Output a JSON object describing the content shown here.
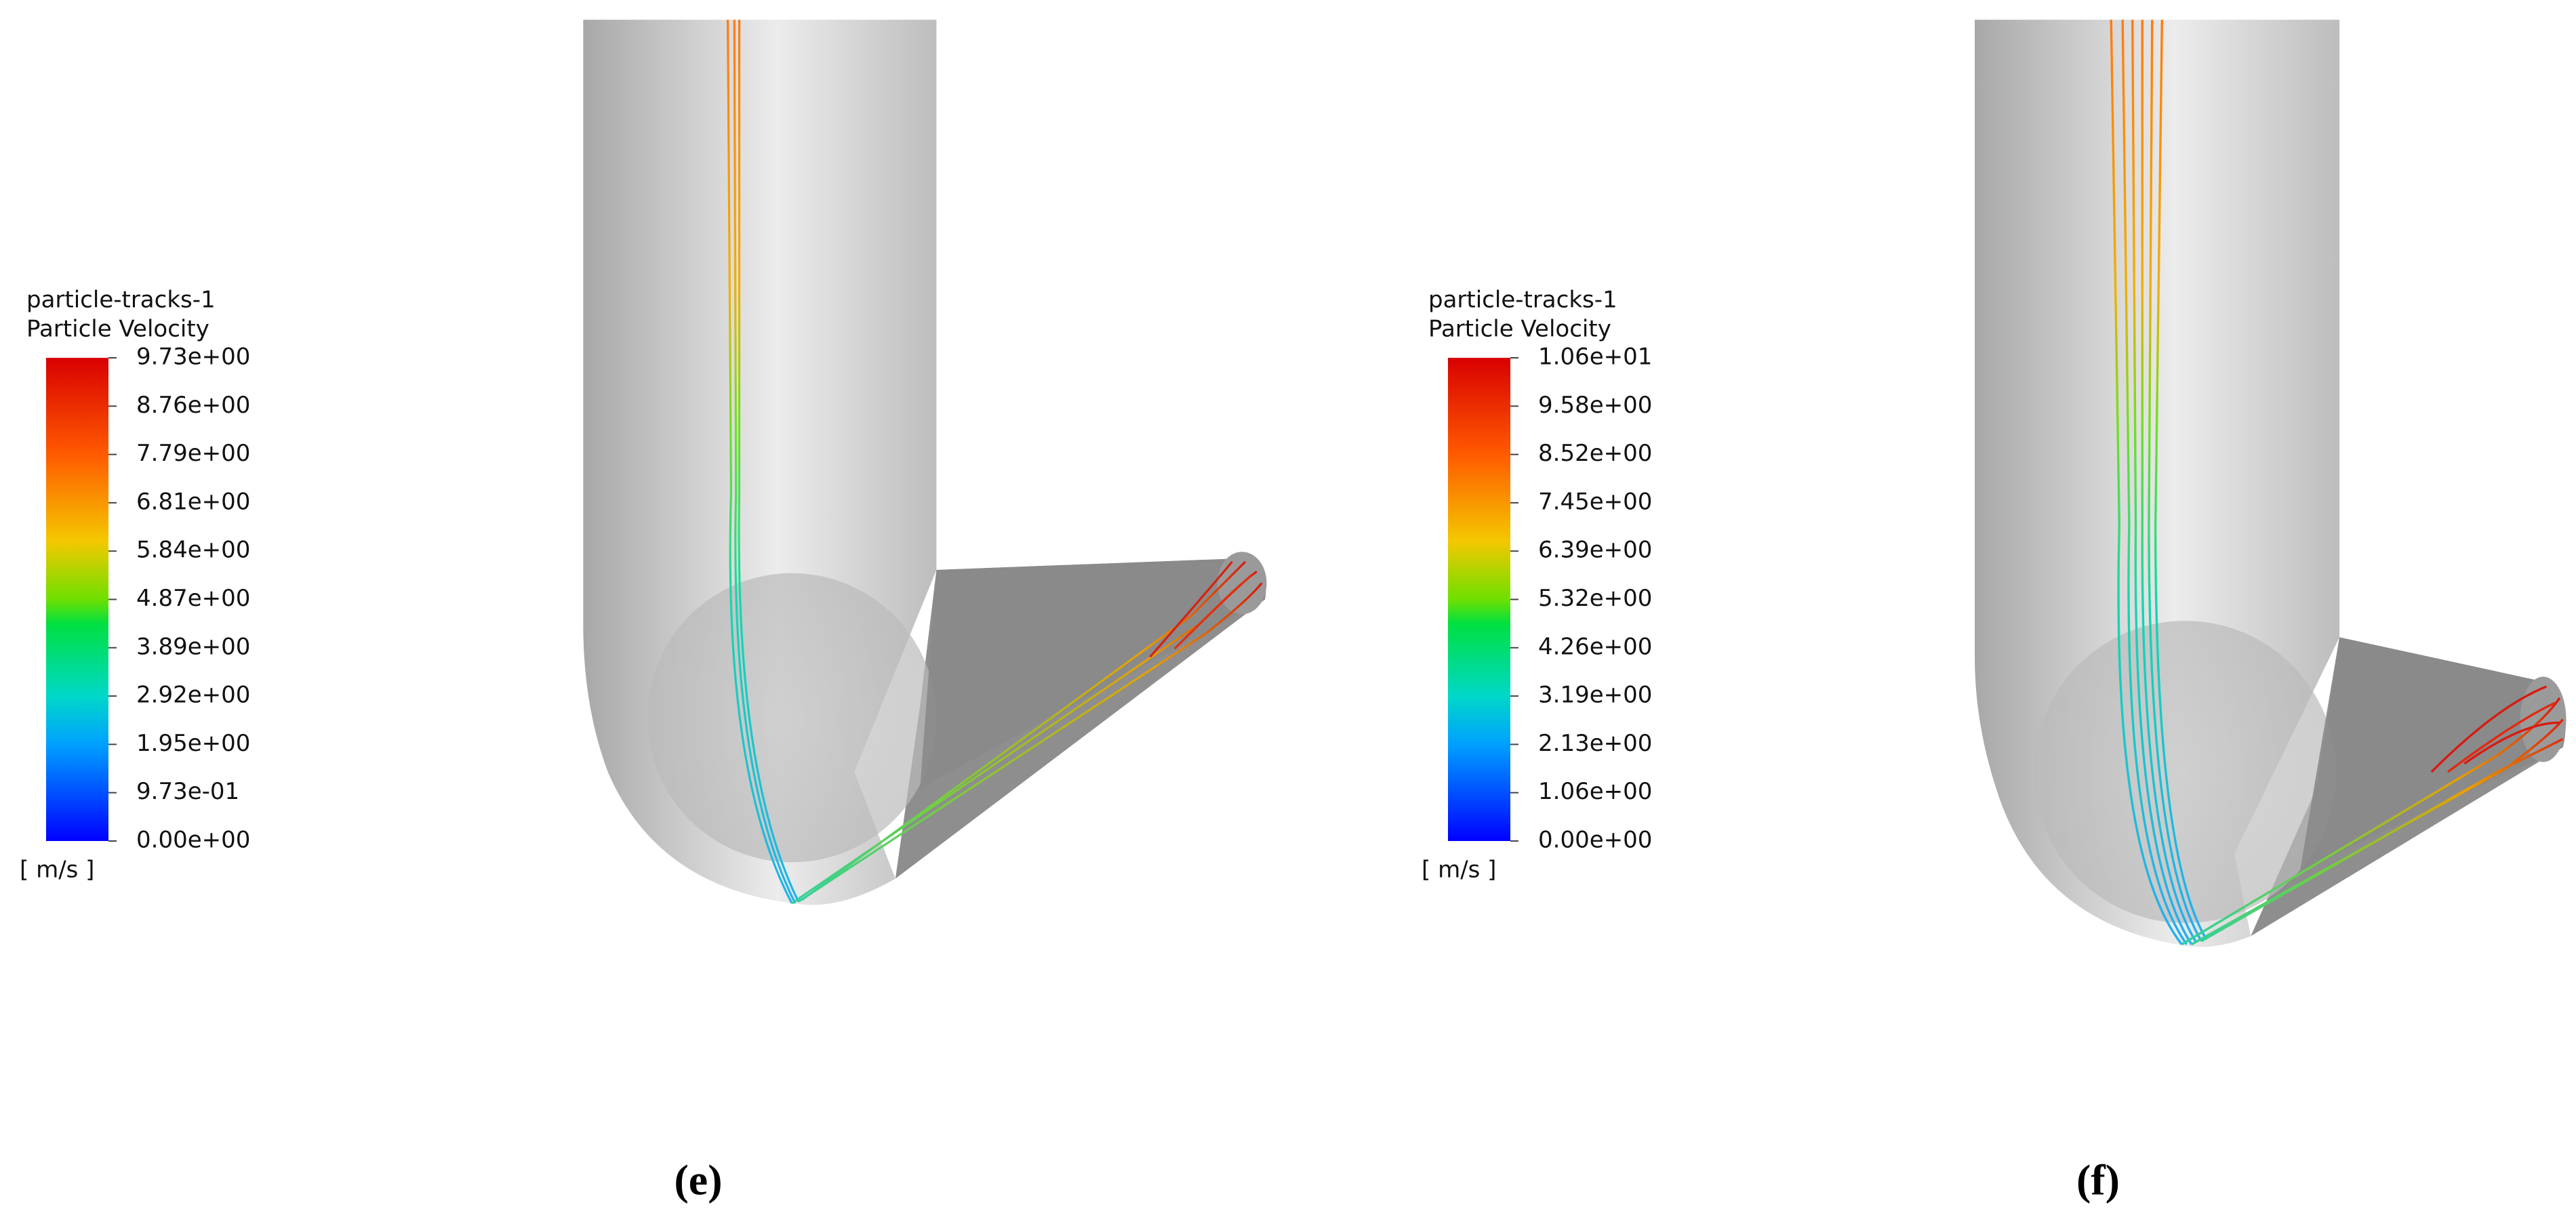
{
  "panels": [
    {
      "label": "(e)",
      "legend": {
        "title": "particle-tracks-1",
        "variable": "Particle Velocity",
        "ticks": [
          "9.73e+00",
          "8.76e+00",
          "7.79e+00",
          "6.81e+00",
          "5.84e+00",
          "4.87e+00",
          "3.89e+00",
          "2.92e+00",
          "1.95e+00",
          "9.73e-01",
          "0.00e+00"
        ],
        "unit": "[ m/s ]"
      }
    },
    {
      "label": "(f)",
      "legend": {
        "title": "particle-tracks-1",
        "variable": "Particle Velocity",
        "ticks": [
          "1.06e+01",
          "9.58e+00",
          "8.52e+00",
          "7.45e+00",
          "6.39e+00",
          "5.32e+00",
          "4.26e+00",
          "3.19e+00",
          "2.13e+00",
          "1.06e+00",
          "0.00e+00"
        ],
        "unit": "[ m/s ]"
      }
    }
  ]
}
